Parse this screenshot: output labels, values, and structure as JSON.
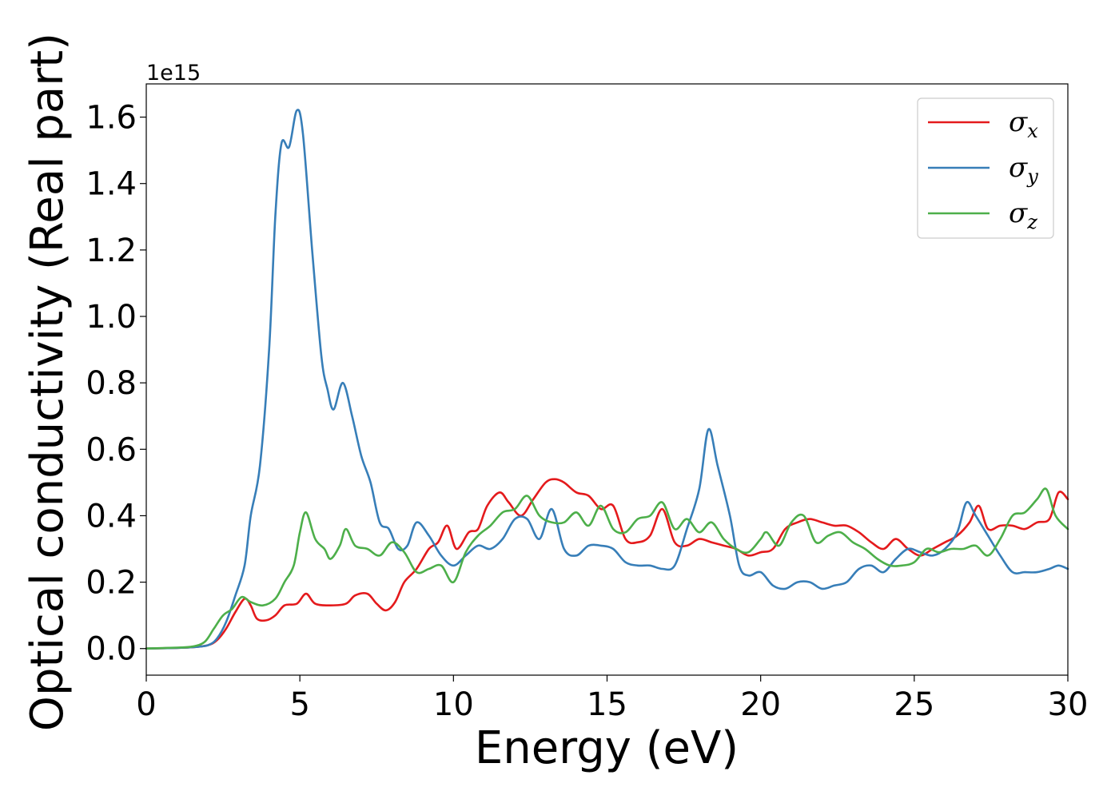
{
  "chart_data": {
    "type": "line",
    "xlabel": "Energy (eV)",
    "ylabel": "Optical conductivity (Real part)",
    "y_offset_label": "1e15",
    "xlim": [
      0,
      30
    ],
    "ylim": [
      -0.08,
      1.7
    ],
    "xticks": [
      0,
      5,
      10,
      15,
      20,
      25,
      30
    ],
    "yticks": [
      0.0,
      0.2,
      0.4,
      0.6,
      0.8,
      1.0,
      1.2,
      1.4,
      1.6
    ],
    "xtick_labels": [
      "0",
      "5",
      "10",
      "15",
      "20",
      "25",
      "30"
    ],
    "ytick_labels": [
      "0.0",
      "0.2",
      "0.4",
      "0.6",
      "0.8",
      "1.0",
      "1.2",
      "1.4",
      "1.6"
    ],
    "grid": false,
    "legend_position": "top-right",
    "series": [
      {
        "name": "σ",
        "subscript": "x",
        "color": "#e41a1c",
        "points": [
          [
            0,
            0
          ],
          [
            1,
            0.002
          ],
          [
            1.5,
            0.004
          ],
          [
            2,
            0.01
          ],
          [
            2.3,
            0.025
          ],
          [
            2.6,
            0.06
          ],
          [
            2.9,
            0.11
          ],
          [
            3.2,
            0.15
          ],
          [
            3.4,
            0.13
          ],
          [
            3.6,
            0.09
          ],
          [
            3.9,
            0.085
          ],
          [
            4.2,
            0.1
          ],
          [
            4.5,
            0.13
          ],
          [
            4.9,
            0.135
          ],
          [
            5.2,
            0.165
          ],
          [
            5.5,
            0.135
          ],
          [
            6,
            0.13
          ],
          [
            6.5,
            0.135
          ],
          [
            6.8,
            0.16
          ],
          [
            7.2,
            0.165
          ],
          [
            7.5,
            0.135
          ],
          [
            7.8,
            0.115
          ],
          [
            8.1,
            0.14
          ],
          [
            8.4,
            0.2
          ],
          [
            8.8,
            0.24
          ],
          [
            9.2,
            0.3
          ],
          [
            9.5,
            0.32
          ],
          [
            9.8,
            0.37
          ],
          [
            10.1,
            0.3
          ],
          [
            10.5,
            0.35
          ],
          [
            10.8,
            0.36
          ],
          [
            11.1,
            0.43
          ],
          [
            11.5,
            0.47
          ],
          [
            11.8,
            0.44
          ],
          [
            12.2,
            0.4
          ],
          [
            12.6,
            0.45
          ],
          [
            13,
            0.5
          ],
          [
            13.3,
            0.51
          ],
          [
            13.6,
            0.5
          ],
          [
            14,
            0.47
          ],
          [
            14.4,
            0.46
          ],
          [
            14.8,
            0.42
          ],
          [
            15.2,
            0.43
          ],
          [
            15.6,
            0.33
          ],
          [
            16,
            0.32
          ],
          [
            16.4,
            0.34
          ],
          [
            16.8,
            0.42
          ],
          [
            17.2,
            0.32
          ],
          [
            17.6,
            0.31
          ],
          [
            18,
            0.33
          ],
          [
            18.4,
            0.32
          ],
          [
            18.8,
            0.31
          ],
          [
            19.2,
            0.3
          ],
          [
            19.6,
            0.28
          ],
          [
            20,
            0.29
          ],
          [
            20.4,
            0.3
          ],
          [
            20.8,
            0.36
          ],
          [
            21.2,
            0.38
          ],
          [
            21.6,
            0.39
          ],
          [
            22,
            0.38
          ],
          [
            22.4,
            0.37
          ],
          [
            22.8,
            0.37
          ],
          [
            23.2,
            0.35
          ],
          [
            23.6,
            0.32
          ],
          [
            24,
            0.3
          ],
          [
            24.4,
            0.33
          ],
          [
            24.8,
            0.3
          ],
          [
            25.2,
            0.28
          ],
          [
            25.6,
            0.3
          ],
          [
            26,
            0.32
          ],
          [
            26.4,
            0.34
          ],
          [
            26.8,
            0.38
          ],
          [
            27.1,
            0.43
          ],
          [
            27.4,
            0.36
          ],
          [
            27.8,
            0.37
          ],
          [
            28.2,
            0.37
          ],
          [
            28.6,
            0.36
          ],
          [
            29,
            0.38
          ],
          [
            29.4,
            0.39
          ],
          [
            29.7,
            0.47
          ],
          [
            30,
            0.45
          ]
        ]
      },
      {
        "name": "σ",
        "subscript": "y",
        "color": "#377eb8",
        "points": [
          [
            0,
            0
          ],
          [
            1,
            0.002
          ],
          [
            1.5,
            0.004
          ],
          [
            2,
            0.01
          ],
          [
            2.3,
            0.03
          ],
          [
            2.6,
            0.08
          ],
          [
            2.9,
            0.16
          ],
          [
            3.2,
            0.25
          ],
          [
            3.4,
            0.4
          ],
          [
            3.7,
            0.55
          ],
          [
            4,
            0.9
          ],
          [
            4.2,
            1.3
          ],
          [
            4.4,
            1.52
          ],
          [
            4.65,
            1.51
          ],
          [
            4.9,
            1.62
          ],
          [
            5.1,
            1.55
          ],
          [
            5.4,
            1.2
          ],
          [
            5.7,
            0.88
          ],
          [
            5.9,
            0.78
          ],
          [
            6.1,
            0.72
          ],
          [
            6.4,
            0.8
          ],
          [
            6.7,
            0.7
          ],
          [
            7,
            0.58
          ],
          [
            7.3,
            0.5
          ],
          [
            7.6,
            0.38
          ],
          [
            7.9,
            0.36
          ],
          [
            8.2,
            0.3
          ],
          [
            8.5,
            0.31
          ],
          [
            8.8,
            0.38
          ],
          [
            9.2,
            0.34
          ],
          [
            9.6,
            0.28
          ],
          [
            10,
            0.25
          ],
          [
            10.4,
            0.28
          ],
          [
            10.8,
            0.31
          ],
          [
            11.2,
            0.3
          ],
          [
            11.6,
            0.33
          ],
          [
            12,
            0.39
          ],
          [
            12.4,
            0.39
          ],
          [
            12.8,
            0.33
          ],
          [
            13.2,
            0.42
          ],
          [
            13.6,
            0.3
          ],
          [
            14,
            0.28
          ],
          [
            14.4,
            0.31
          ],
          [
            14.8,
            0.31
          ],
          [
            15.2,
            0.3
          ],
          [
            15.6,
            0.26
          ],
          [
            16,
            0.25
          ],
          [
            16.4,
            0.25
          ],
          [
            16.8,
            0.24
          ],
          [
            17.2,
            0.25
          ],
          [
            17.6,
            0.36
          ],
          [
            18,
            0.48
          ],
          [
            18.3,
            0.66
          ],
          [
            18.6,
            0.55
          ],
          [
            19,
            0.4
          ],
          [
            19.3,
            0.25
          ],
          [
            19.6,
            0.22
          ],
          [
            20,
            0.23
          ],
          [
            20.4,
            0.19
          ],
          [
            20.8,
            0.18
          ],
          [
            21.2,
            0.2
          ],
          [
            21.6,
            0.2
          ],
          [
            22,
            0.18
          ],
          [
            22.4,
            0.19
          ],
          [
            22.8,
            0.2
          ],
          [
            23.2,
            0.24
          ],
          [
            23.6,
            0.25
          ],
          [
            24,
            0.23
          ],
          [
            24.4,
            0.27
          ],
          [
            24.8,
            0.3
          ],
          [
            25.2,
            0.29
          ],
          [
            25.6,
            0.28
          ],
          [
            26,
            0.3
          ],
          [
            26.4,
            0.35
          ],
          [
            26.7,
            0.44
          ],
          [
            27,
            0.4
          ],
          [
            27.4,
            0.34
          ],
          [
            27.8,
            0.28
          ],
          [
            28.2,
            0.23
          ],
          [
            28.6,
            0.23
          ],
          [
            29,
            0.23
          ],
          [
            29.4,
            0.24
          ],
          [
            29.7,
            0.25
          ],
          [
            30,
            0.24
          ]
        ]
      },
      {
        "name": "σ",
        "subscript": "z",
        "color": "#4daf4a",
        "points": [
          [
            0,
            0
          ],
          [
            1,
            0.003
          ],
          [
            1.5,
            0.006
          ],
          [
            1.9,
            0.02
          ],
          [
            2.2,
            0.06
          ],
          [
            2.5,
            0.1
          ],
          [
            2.8,
            0.12
          ],
          [
            3.1,
            0.155
          ],
          [
            3.4,
            0.14
          ],
          [
            3.8,
            0.13
          ],
          [
            4.2,
            0.15
          ],
          [
            4.5,
            0.2
          ],
          [
            4.8,
            0.25
          ],
          [
            5,
            0.35
          ],
          [
            5.2,
            0.41
          ],
          [
            5.5,
            0.33
          ],
          [
            5.8,
            0.3
          ],
          [
            6,
            0.27
          ],
          [
            6.3,
            0.31
          ],
          [
            6.5,
            0.36
          ],
          [
            6.8,
            0.31
          ],
          [
            7.2,
            0.3
          ],
          [
            7.6,
            0.28
          ],
          [
            8,
            0.32
          ],
          [
            8.4,
            0.29
          ],
          [
            8.8,
            0.23
          ],
          [
            9.2,
            0.24
          ],
          [
            9.6,
            0.25
          ],
          [
            10,
            0.2
          ],
          [
            10.4,
            0.29
          ],
          [
            10.8,
            0.34
          ],
          [
            11.2,
            0.37
          ],
          [
            11.6,
            0.41
          ],
          [
            12,
            0.42
          ],
          [
            12.4,
            0.46
          ],
          [
            12.8,
            0.4
          ],
          [
            13.2,
            0.38
          ],
          [
            13.6,
            0.38
          ],
          [
            14,
            0.41
          ],
          [
            14.4,
            0.37
          ],
          [
            14.8,
            0.43
          ],
          [
            15.2,
            0.36
          ],
          [
            15.6,
            0.35
          ],
          [
            16,
            0.39
          ],
          [
            16.4,
            0.4
          ],
          [
            16.8,
            0.44
          ],
          [
            17.2,
            0.36
          ],
          [
            17.6,
            0.39
          ],
          [
            18,
            0.35
          ],
          [
            18.4,
            0.38
          ],
          [
            18.8,
            0.33
          ],
          [
            19.2,
            0.3
          ],
          [
            19.6,
            0.29
          ],
          [
            20,
            0.33
          ],
          [
            20.2,
            0.35
          ],
          [
            20.6,
            0.31
          ],
          [
            21,
            0.38
          ],
          [
            21.4,
            0.4
          ],
          [
            21.8,
            0.32
          ],
          [
            22.2,
            0.34
          ],
          [
            22.6,
            0.35
          ],
          [
            23,
            0.32
          ],
          [
            23.4,
            0.3
          ],
          [
            23.8,
            0.27
          ],
          [
            24.2,
            0.25
          ],
          [
            24.6,
            0.25
          ],
          [
            25,
            0.26
          ],
          [
            25.4,
            0.3
          ],
          [
            25.8,
            0.29
          ],
          [
            26.2,
            0.3
          ],
          [
            26.6,
            0.3
          ],
          [
            27,
            0.31
          ],
          [
            27.4,
            0.28
          ],
          [
            27.8,
            0.33
          ],
          [
            28.2,
            0.4
          ],
          [
            28.6,
            0.41
          ],
          [
            29,
            0.45
          ],
          [
            29.3,
            0.48
          ],
          [
            29.6,
            0.4
          ],
          [
            30,
            0.36
          ]
        ]
      }
    ]
  }
}
